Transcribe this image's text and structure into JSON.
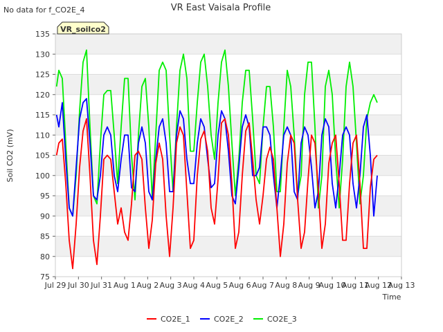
{
  "status_message": "No data for f_CO2E_4",
  "chart_data": {
    "type": "line",
    "title": "VR East Vaisala Profile",
    "site_label": "VR_soilco2",
    "xlabel": "Time",
    "ylabel": "Soil CO2 (mV)",
    "ylim": [
      75,
      135
    ],
    "yticks": [
      75,
      80,
      85,
      90,
      95,
      100,
      105,
      110,
      115,
      120,
      125,
      130,
      135
    ],
    "xlim": [
      0,
      15
    ],
    "xticks": [
      {
        "label": "Jul 29",
        "x": 0
      },
      {
        "label": "Jul 30",
        "x": 1
      },
      {
        "label": "Jul 31",
        "x": 2
      },
      {
        "label": "Aug 1",
        "x": 3
      },
      {
        "label": "Aug 2",
        "x": 4
      },
      {
        "label": "Aug 3",
        "x": 5
      },
      {
        "label": "Aug 4",
        "x": 6
      },
      {
        "label": "Aug 5",
        "x": 7
      },
      {
        "label": "Aug 6",
        "x": 8
      },
      {
        "label": "Aug 7",
        "x": 9
      },
      {
        "label": "Aug 8",
        "x": 10
      },
      {
        "label": "Aug 9",
        "x": 11
      },
      {
        "label": "Aug 10",
        "x": 12
      },
      {
        "label": "Aug 11",
        "x": 13
      },
      {
        "label": "Aug 12",
        "x": 14
      },
      {
        "label": "Aug 13",
        "x": 15
      }
    ],
    "grid": "horizontal bands",
    "legend_position": "bottom-center",
    "series": [
      {
        "name": "CO2E_1",
        "color": "#ff0000",
        "x": [
          0.05,
          0.15,
          0.3,
          0.45,
          0.6,
          0.75,
          0.9,
          1.05,
          1.2,
          1.35,
          1.5,
          1.65,
          1.8,
          1.95,
          2.1,
          2.25,
          2.4,
          2.55,
          2.7,
          2.85,
          3.0,
          3.15,
          3.3,
          3.45,
          3.6,
          3.75,
          3.9,
          4.05,
          4.2,
          4.35,
          4.5,
          4.65,
          4.8,
          4.95,
          5.1,
          5.25,
          5.4,
          5.55,
          5.7,
          5.85,
          6.0,
          6.15,
          6.3,
          6.45,
          6.6,
          6.75,
          6.9,
          7.05,
          7.2,
          7.35,
          7.5,
          7.65,
          7.8,
          7.95,
          8.1,
          8.25,
          8.4,
          8.55,
          8.7,
          8.85,
          9.0,
          9.15,
          9.3,
          9.45,
          9.6,
          9.75,
          9.9,
          10.05,
          10.2,
          10.35,
          10.5,
          10.65,
          10.8,
          10.95,
          11.1,
          11.25,
          11.4,
          11.55,
          11.7,
          11.85,
          12.0,
          12.15,
          12.3,
          12.45,
          12.6,
          12.75,
          12.9,
          13.05,
          13.2,
          13.35,
          13.5,
          13.65,
          13.8,
          13.95
        ],
        "y": [
          105,
          108,
          109,
          98,
          84,
          77,
          88,
          102,
          111,
          114,
          100,
          84,
          78,
          90,
          104,
          105,
          104,
          96,
          88,
          92,
          86,
          84,
          93,
          105,
          106,
          104,
          92,
          82,
          89,
          103,
          108,
          104,
          90,
          80,
          92,
          108,
          112,
          110,
          96,
          82,
          84,
          100,
          109,
          111,
          106,
          92,
          88,
          99,
          113,
          114,
          110,
          98,
          82,
          86,
          100,
          111,
          113,
          104,
          94,
          88,
          95,
          104,
          107,
          104,
          92,
          80,
          88,
          103,
          110,
          108,
          94,
          82,
          86,
          99,
          110,
          108,
          96,
          82,
          88,
          103,
          108,
          110,
          98,
          84,
          84,
          98,
          108,
          110,
          98,
          82,
          82,
          97,
          104,
          105
        ]
      },
      {
        "name": "CO2E_2",
        "color": "#0000ff",
        "x": [
          0.05,
          0.15,
          0.3,
          0.45,
          0.6,
          0.75,
          0.9,
          1.05,
          1.2,
          1.35,
          1.5,
          1.65,
          1.8,
          1.95,
          2.1,
          2.25,
          2.4,
          2.55,
          2.7,
          2.85,
          3.0,
          3.15,
          3.3,
          3.45,
          3.6,
          3.75,
          3.9,
          4.05,
          4.2,
          4.35,
          4.5,
          4.65,
          4.8,
          4.95,
          5.1,
          5.25,
          5.4,
          5.55,
          5.7,
          5.85,
          6.0,
          6.15,
          6.3,
          6.45,
          6.6,
          6.75,
          6.9,
          7.05,
          7.2,
          7.35,
          7.5,
          7.65,
          7.8,
          7.95,
          8.1,
          8.25,
          8.4,
          8.55,
          8.7,
          8.85,
          9.0,
          9.15,
          9.3,
          9.45,
          9.6,
          9.75,
          9.9,
          10.05,
          10.2,
          10.35,
          10.5,
          10.65,
          10.8,
          10.95,
          11.1,
          11.25,
          11.4,
          11.55,
          11.7,
          11.85,
          12.0,
          12.15,
          12.3,
          12.45,
          12.6,
          12.75,
          12.9,
          13.05,
          13.2,
          13.35,
          13.5,
          13.65,
          13.8,
          13.95
        ],
        "y": [
          115,
          112,
          118,
          104,
          92,
          90,
          102,
          114,
          118,
          119,
          108,
          95,
          94,
          100,
          110,
          112,
          110,
          100,
          96,
          104,
          110,
          110,
          97,
          96,
          108,
          112,
          108,
          96,
          94,
          104,
          112,
          114,
          108,
          96,
          96,
          110,
          116,
          114,
          104,
          98,
          98,
          108,
          114,
          112,
          104,
          97,
          98,
          110,
          116,
          114,
          106,
          95,
          93,
          102,
          112,
          115,
          112,
          100,
          100,
          102,
          112,
          112,
          110,
          100,
          92,
          100,
          110,
          112,
          110,
          96,
          94,
          108,
          112,
          110,
          102,
          92,
          96,
          110,
          114,
          112,
          98,
          92,
          100,
          110,
          112,
          110,
          98,
          92,
          100,
          112,
          115,
          105,
          90,
          100
        ]
      },
      {
        "name": "CO2E_3",
        "color": "#00ee00",
        "x": [
          0.05,
          0.15,
          0.3,
          0.45,
          0.6,
          0.75,
          0.9,
          1.05,
          1.2,
          1.35,
          1.5,
          1.65,
          1.8,
          1.95,
          2.1,
          2.25,
          2.4,
          2.55,
          2.7,
          2.85,
          3.0,
          3.15,
          3.3,
          3.45,
          3.6,
          3.75,
          3.9,
          4.05,
          4.2,
          4.35,
          4.5,
          4.65,
          4.8,
          4.95,
          5.1,
          5.25,
          5.4,
          5.55,
          5.7,
          5.85,
          6.0,
          6.15,
          6.3,
          6.45,
          6.6,
          6.75,
          6.9,
          7.05,
          7.2,
          7.35,
          7.5,
          7.65,
          7.8,
          7.95,
          8.1,
          8.25,
          8.4,
          8.55,
          8.7,
          8.85,
          9.0,
          9.15,
          9.3,
          9.45,
          9.6,
          9.75,
          9.9,
          10.05,
          10.2,
          10.35,
          10.5,
          10.65,
          10.8,
          10.95,
          11.1,
          11.25,
          11.4,
          11.55,
          11.7,
          11.85,
          12.0,
          12.15,
          12.3,
          12.45,
          12.6,
          12.75,
          12.9,
          13.05,
          13.2,
          13.35,
          13.5,
          13.65,
          13.8,
          13.95
        ],
        "y": [
          122,
          126,
          124,
          108,
          92,
          90,
          100,
          116,
          128,
          131,
          112,
          95,
          93,
          108,
          120,
          121,
          121,
          110,
          98,
          112,
          124,
          124,
          105,
          94,
          110,
          122,
          124,
          112,
          94,
          110,
          126,
          128,
          126,
          110,
          96,
          112,
          126,
          130,
          124,
          106,
          106,
          118,
          128,
          130,
          122,
          110,
          104,
          118,
          128,
          131,
          122,
          108,
          95,
          104,
          118,
          126,
          126,
          114,
          100,
          98,
          112,
          122,
          122,
          112,
          96,
          96,
          112,
          126,
          122,
          110,
          95,
          100,
          120,
          128,
          128,
          112,
          92,
          100,
          122,
          126,
          120,
          104,
          92,
          104,
          122,
          128,
          122,
          108,
          93,
          100,
          114,
          118,
          120,
          118
        ]
      }
    ]
  }
}
